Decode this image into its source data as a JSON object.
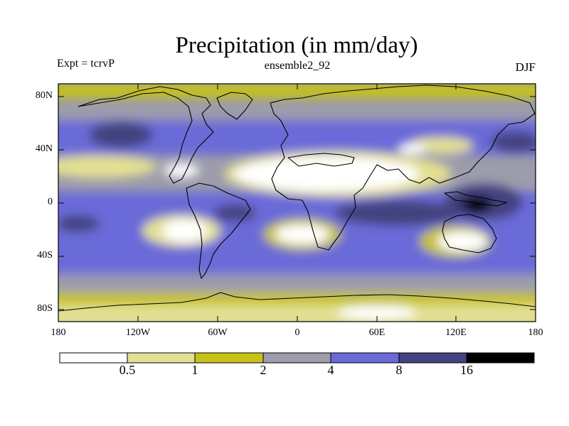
{
  "title": "Precipitation (in mm/day)",
  "experiment": "Expt = tcrvP",
  "ensemble": "ensemble2_92",
  "season": "DJF",
  "colors": {
    "bin0": "#ffffff",
    "bin1": "#e4e093",
    "bin2": "#c6c219",
    "bin3": "#9c9cac",
    "bin4": "#6a6ad8",
    "bin5": "#43437f",
    "bin6": "#000000",
    "coast": "#000000"
  },
  "lat_labels": [
    "80N",
    "40N",
    "0",
    "40S",
    "80S"
  ],
  "lon_labels": [
    "180",
    "120W",
    "60W",
    "0",
    "60E",
    "120E",
    "180"
  ],
  "colorbar": {
    "colors": [
      "#ffffff",
      "#e4e093",
      "#c6c219",
      "#9c9cac",
      "#6a6ad8",
      "#43437f",
      "#000000"
    ],
    "boundaries": [
      "0.5",
      "1",
      "2",
      "4",
      "8",
      "16"
    ]
  }
}
